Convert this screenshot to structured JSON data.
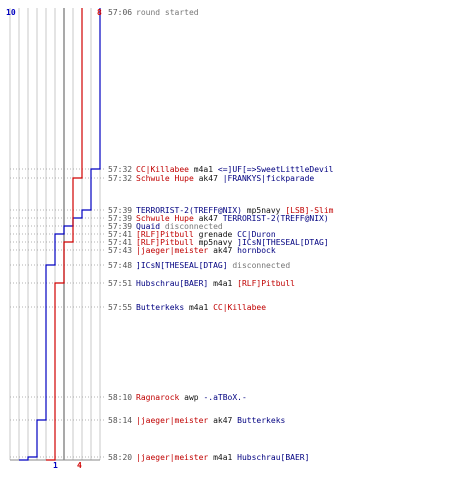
{
  "colors": {
    "team_blue": "#0000c0",
    "team_red": "#d00000",
    "text_red": "#c00000",
    "text_blue": "#000080",
    "grid": "#c8c8c8",
    "dotted": "#999999"
  },
  "counts": {
    "blue_start": "10",
    "red_start": "8",
    "blue_end": "1",
    "red_end": "4"
  },
  "chart_data": {
    "type": "line",
    "xlabel": "",
    "ylabel": "",
    "series": [
      {
        "team": "blue",
        "values": [
          10,
          9,
          9,
          8,
          7,
          6,
          5,
          5,
          5,
          4,
          4,
          4,
          4,
          3,
          2,
          1
        ]
      },
      {
        "team": "red",
        "values": [
          8,
          8,
          7,
          7,
          7,
          7,
          7,
          6,
          6,
          6,
          5,
          5,
          5,
          5,
          5,
          4
        ]
      }
    ]
  },
  "events": [
    {
      "time": "57:06",
      "segments": [
        {
          "t": "round started",
          "c": "grey"
        }
      ]
    },
    {
      "time": "57:32",
      "segments": [
        {
          "t": "CC|Killabee",
          "c": "red"
        },
        {
          "t": " m4a1 ",
          "c": "black"
        },
        {
          "t": "<=]UF[=>SweetLittleDevil",
          "c": "blue"
        }
      ]
    },
    {
      "time": "57:32",
      "segments": [
        {
          "t": "Schwule Hupe",
          "c": "red"
        },
        {
          "t": " ak47 ",
          "c": "black"
        },
        {
          "t": "|FRANKYS|fickparade",
          "c": "blue"
        }
      ]
    },
    {
      "time": "57:39",
      "segments": [
        {
          "t": "TERRORIST-2(TREFF@NIX)",
          "c": "blue"
        },
        {
          "t": " mp5navy ",
          "c": "black"
        },
        {
          "t": "[LSB]-Slim",
          "c": "red"
        }
      ]
    },
    {
      "time": "57:39",
      "segments": [
        {
          "t": "Schwule Hupe",
          "c": "red"
        },
        {
          "t": " ak47 ",
          "c": "black"
        },
        {
          "t": "TERRORIST-2(TREFF@NIX)",
          "c": "blue"
        }
      ]
    },
    {
      "time": "57:39",
      "segments": [
        {
          "t": "Quaid",
          "c": "blue"
        },
        {
          "t": " disconnected",
          "c": "grey"
        }
      ]
    },
    {
      "time": "57:41",
      "segments": [
        {
          "t": "[RLF]Pitbull",
          "c": "red"
        },
        {
          "t": " grenade ",
          "c": "black"
        },
        {
          "t": "CC|Duron",
          "c": "blue"
        }
      ]
    },
    {
      "time": "57:41",
      "segments": [
        {
          "t": "[RLF]Pitbull",
          "c": "red"
        },
        {
          "t": " mp5navy ",
          "c": "black"
        },
        {
          "t": "]ICsN[THESEAL[DTAG]",
          "c": "blue"
        }
      ]
    },
    {
      "time": "57:43",
      "segments": [
        {
          "t": "|jaeger|meister",
          "c": "red"
        },
        {
          "t": " ak47 ",
          "c": "black"
        },
        {
          "t": "hornbock",
          "c": "blue"
        }
      ]
    },
    {
      "time": "57:48",
      "segments": [
        {
          "t": "]ICsN[THESEAL[DTAG]",
          "c": "blue"
        },
        {
          "t": " disconnected",
          "c": "grey"
        }
      ]
    },
    {
      "time": "57:51",
      "segments": [
        {
          "t": "Hubschrau[BAER]",
          "c": "blue"
        },
        {
          "t": " m4a1 ",
          "c": "black"
        },
        {
          "t": "[RLF]Pitbull",
          "c": "red"
        }
      ]
    },
    {
      "time": "57:55",
      "segments": [
        {
          "t": "Butterkeks",
          "c": "blue"
        },
        {
          "t": " m4a1 ",
          "c": "black"
        },
        {
          "t": "CC|Killabee",
          "c": "red"
        }
      ]
    },
    {
      "time": "58:10",
      "segments": [
        {
          "t": "Ragnarock",
          "c": "red"
        },
        {
          "t": " awp ",
          "c": "black"
        },
        {
          "t": "-.aTBoX.-",
          "c": "blue"
        }
      ]
    },
    {
      "time": "58:14",
      "segments": [
        {
          "t": "|jaeger|meister",
          "c": "red"
        },
        {
          "t": " ak47 ",
          "c": "black"
        },
        {
          "t": "Butterkeks",
          "c": "blue"
        }
      ]
    },
    {
      "time": "58:20",
      "segments": [
        {
          "t": "|jaeger|meister",
          "c": "red"
        },
        {
          "t": " m4a1 ",
          "c": "black"
        },
        {
          "t": "Hubschrau[BAER]",
          "c": "blue"
        }
      ]
    }
  ]
}
